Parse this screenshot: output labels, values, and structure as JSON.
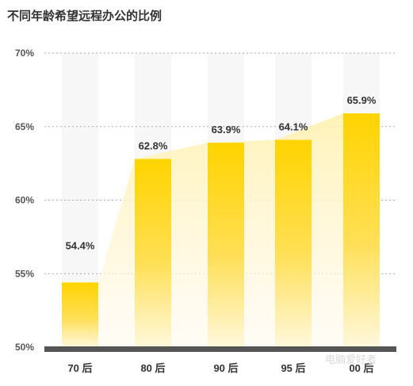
{
  "title": "不同年龄希望远程办公的比例",
  "watermark": "电脑爱好者",
  "colors": {
    "bar_top": "#ffd400",
    "bar_bottom": "#fff8dc",
    "area": "#fff3c0",
    "column_bg": "#f7f7f7",
    "baseline": "#555555",
    "grid": "#aaaaaa"
  },
  "chart_data": {
    "type": "bar",
    "title": "不同年龄希望远程办公的比例",
    "categories": [
      "70 后",
      "80 后",
      "90 后",
      "95 后",
      "00 后"
    ],
    "values": [
      54.4,
      62.8,
      63.9,
      64.1,
      65.9
    ],
    "value_labels": [
      "54.4%",
      "62.8%",
      "63.9%",
      "64.1%",
      "65.9%"
    ],
    "ylim": [
      50,
      70
    ],
    "yticks": [
      50,
      55,
      60,
      65,
      70
    ],
    "ytick_labels": [
      "50%",
      "55%",
      "60%",
      "65%",
      "70%"
    ],
    "xlabel": "",
    "ylabel": "",
    "grid": true,
    "legend": "none"
  }
}
